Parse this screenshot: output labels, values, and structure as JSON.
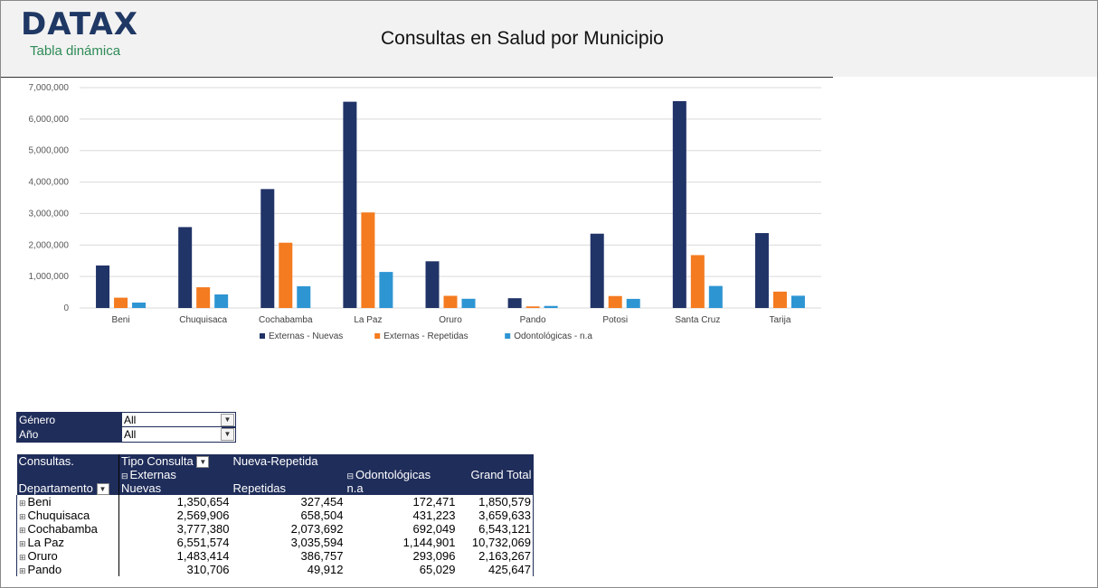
{
  "header": {
    "logo": "DATAX",
    "subtitle": "Tabla dinámica",
    "title": "Consultas en Salud por Municipio"
  },
  "colors": {
    "nuevas": "#213468",
    "repetidas": "#f47b20",
    "odontologicas": "#2e95d3",
    "header_dark": "#1f2d5a"
  },
  "chart_data": {
    "type": "bar",
    "categories": [
      "Beni",
      "Chuquisaca",
      "Cochabamba",
      "La Paz",
      "Oruro",
      "Pando",
      "Potosi",
      "Santa Cruz",
      "Tarija"
    ],
    "series": [
      {
        "name": "Externas - Nuevas",
        "values": [
          1350654,
          2569906,
          3777380,
          6551574,
          1483414,
          310706,
          2360000,
          6570000,
          2380000
        ]
      },
      {
        "name": "Externas - Repetidas",
        "values": [
          327454,
          658504,
          2073692,
          3035594,
          386757,
          49912,
          380000,
          1680000,
          520000
        ]
      },
      {
        "name": "Odontológicas - n.a",
        "values": [
          172471,
          431223,
          692049,
          1144901,
          293096,
          65029,
          290000,
          700000,
          390000
        ]
      }
    ],
    "yticks": [
      "0",
      "1,000,000",
      "2,000,000",
      "3,000,000",
      "4,000,000",
      "5,000,000",
      "6,000,000",
      "7,000,000"
    ],
    "ylim": [
      0,
      7000000
    ],
    "grid": true,
    "legend": "bottom"
  },
  "slicers": [
    {
      "label": "Género",
      "value": "All"
    },
    {
      "label": "Año",
      "value": "All"
    }
  ],
  "pivot": {
    "corner": "Consultas.",
    "col_field": "Tipo Consulta",
    "col_field2": "Nueva-Repetida",
    "externas": "Externas",
    "odontologicas": "Odontológicas",
    "grand_total": "Grand Total",
    "row_field": "Departamento",
    "nuevas": "Nuevas",
    "repetidas": "Repetidas",
    "na": "n.a",
    "rows": [
      {
        "name": "Beni",
        "nuevas": "1,350,654",
        "repetidas": "327,454",
        "odonto": "172,471",
        "total": "1,850,579"
      },
      {
        "name": "Chuquisaca",
        "nuevas": "2,569,906",
        "repetidas": "658,504",
        "odonto": "431,223",
        "total": "3,659,633"
      },
      {
        "name": "Cochabamba",
        "nuevas": "3,777,380",
        "repetidas": "2,073,692",
        "odonto": "692,049",
        "total": "6,543,121"
      },
      {
        "name": "La Paz",
        "nuevas": "6,551,574",
        "repetidas": "3,035,594",
        "odonto": "1,144,901",
        "total": "10,732,069"
      },
      {
        "name": "Oruro",
        "nuevas": "1,483,414",
        "repetidas": "386,757",
        "odonto": "293,096",
        "total": "2,163,267"
      },
      {
        "name": "Pando",
        "nuevas": "310,706",
        "repetidas": "49,912",
        "odonto": "65,029",
        "total": "425,647"
      }
    ]
  }
}
